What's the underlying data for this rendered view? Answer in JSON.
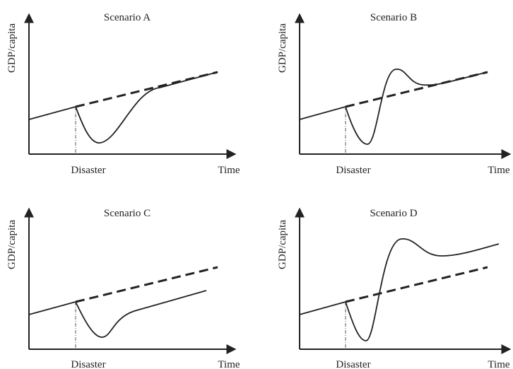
{
  "figure": {
    "panels": [
      {
        "title": "Scenario A",
        "ylabel": "GDP/capita",
        "xlabel": "Time",
        "event_label": "Disaster",
        "outcome": "dip then recovery back to the pre-disaster trend"
      },
      {
        "title": "Scenario B",
        "ylabel": "GDP/capita",
        "xlabel": "Time",
        "event_label": "Disaster",
        "outcome": "dip, overshoot above trend, then return to trend"
      },
      {
        "title": "Scenario C",
        "ylabel": "GDP/capita",
        "xlabel": "Time",
        "event_label": "Disaster",
        "outcome": "dip then growth on a permanently lower path"
      },
      {
        "title": "Scenario D",
        "ylabel": "GDP/capita",
        "xlabel": "Time",
        "event_label": "Disaster",
        "outcome": "dip then growth on a permanently higher path"
      }
    ],
    "colors": {
      "line": "#222222",
      "axis": "#222222",
      "marker": "#555555"
    }
  }
}
